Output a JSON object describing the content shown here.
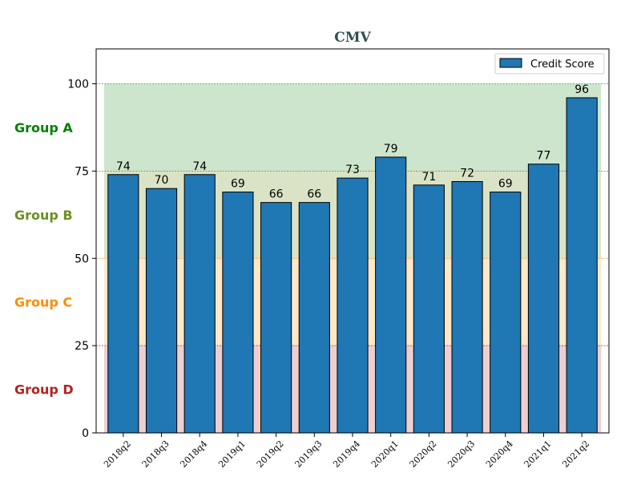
{
  "chart_data": {
    "type": "bar",
    "title": "CMV",
    "xlabel": "",
    "ylabel": "",
    "ylim": [
      0,
      110
    ],
    "yticks": [
      0,
      25,
      50,
      75,
      100
    ],
    "categories": [
      "2018q2",
      "2018q3",
      "2018q4",
      "2019q1",
      "2019q2",
      "2019q3",
      "2019q4",
      "2020q1",
      "2020q2",
      "2020q3",
      "2020q4",
      "2021q1",
      "2021q2"
    ],
    "series": [
      {
        "name": "Credit Score",
        "values": [
          74,
          70,
          74,
          69,
          66,
          66,
          73,
          79,
          71,
          72,
          69,
          77,
          96
        ]
      }
    ],
    "legend_position": "top-right",
    "bands": [
      {
        "label": "Group A",
        "from": 75,
        "to": 100,
        "fill": "#cde5cc",
        "line": "#4caf50",
        "text_color": "#008000"
      },
      {
        "label": "Group B",
        "from": 50,
        "to": 75,
        "fill": "#dbe3c6",
        "line": "#6b8e23",
        "text_color": "#6b8e23"
      },
      {
        "label": "Group C",
        "from": 25,
        "to": 50,
        "fill": "#ffe8c8",
        "line": "#ff8c00",
        "text_color": "#ff8c00"
      },
      {
        "label": "Group D",
        "from": 0,
        "to": 25,
        "fill": "#edcfd1",
        "line": "#b22222",
        "text_color": "#b22222"
      }
    ],
    "colors": {
      "bar": "#1f77b4",
      "bar_edge": "#000000",
      "title": "#2f4f4f"
    }
  }
}
